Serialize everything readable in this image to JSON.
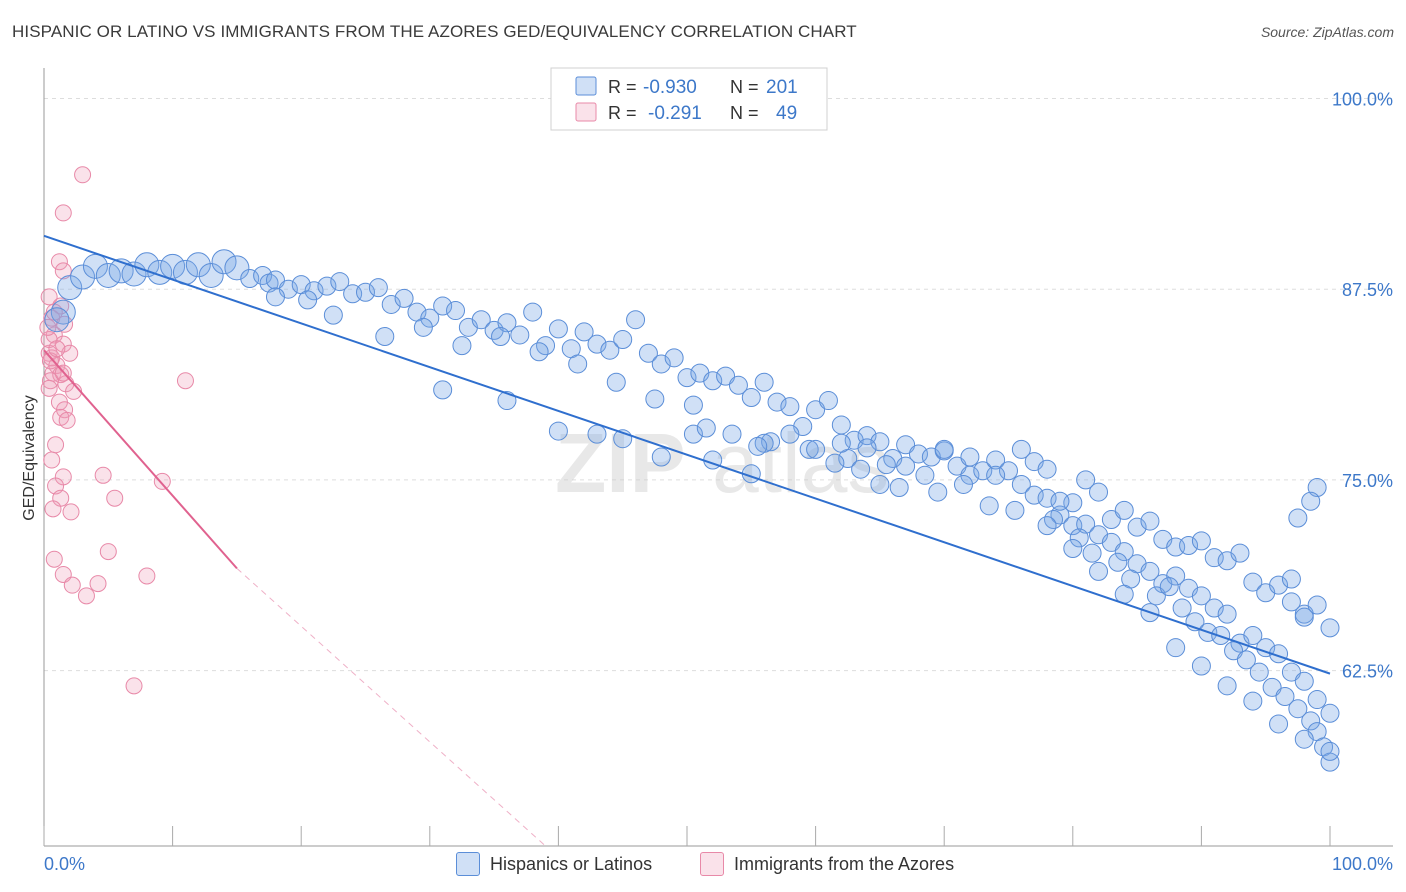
{
  "title": "HISPANIC OR LATINO VS IMMIGRANTS FROM THE AZORES GED/EQUIVALENCY CORRELATION CHART",
  "source": "Source: ZipAtlas.com",
  "watermark": {
    "zip": "ZIP",
    "atlas": "atlas"
  },
  "colors": {
    "blue": "#5b8ed8",
    "blue_fill": "rgba(120,165,230,0.35)",
    "blue_line": "#2f6fce",
    "pink": "#e889a8",
    "pink_fill": "rgba(240,160,185,0.30)",
    "pink_line": "#e0628f",
    "axis_label": "#3d78c9",
    "grid": "#dddddd"
  },
  "legend_top": {
    "rows": [
      {
        "r_label": "R =",
        "r_value": "-0.930",
        "n_label": "N =",
        "n_value": "201"
      },
      {
        "r_label": "R =",
        "r_value": "-0.291",
        "n_label": "N =",
        "n_value": "49"
      }
    ]
  },
  "legend_bottom": {
    "blue": "Hispanics or Latinos",
    "pink": "Immigrants from the Azores"
  },
  "chart_data": {
    "type": "scatter",
    "title": "HISPANIC OR LATINO VS IMMIGRANTS FROM THE AZORES GED/EQUIVALENCY CORRELATION CHART",
    "xlabel": "",
    "ylabel": "GED/Equivalency",
    "xlim": [
      0,
      100
    ],
    "ylim": [
      51.0,
      102.0
    ],
    "x_tick_labels": [
      "0.0%",
      "100.0%"
    ],
    "y_ticks": [
      62.5,
      75.0,
      87.5,
      100.0
    ],
    "y_tick_labels": [
      "62.5%",
      "75.0%",
      "87.5%",
      "100.0%"
    ],
    "grid": true,
    "series": [
      {
        "name": "Hispanics or Latinos",
        "color": "blue",
        "r": -0.93,
        "n": 201,
        "trend": {
          "x": [
            0,
            100
          ],
          "y": [
            91.0,
            62.3
          ]
        },
        "points": [
          [
            2,
            87.6
          ],
          [
            3,
            88.3
          ],
          [
            4,
            89.0
          ],
          [
            5,
            88.4
          ],
          [
            6,
            88.7
          ],
          [
            7,
            88.5
          ],
          [
            8,
            89.1
          ],
          [
            9,
            88.6
          ],
          [
            10,
            89.0
          ],
          [
            11,
            88.6
          ],
          [
            12,
            89.1
          ],
          [
            13,
            88.4
          ],
          [
            14,
            89.3
          ],
          [
            15,
            88.9
          ],
          [
            1.5,
            86.0
          ],
          [
            1,
            85.5
          ],
          [
            16,
            88.2
          ],
          [
            17,
            88.4
          ],
          [
            17.5,
            87.9
          ],
          [
            18,
            88.1
          ],
          [
            19,
            87.5
          ],
          [
            20,
            87.8
          ],
          [
            21,
            87.4
          ],
          [
            22,
            87.7
          ],
          [
            23,
            88.0
          ],
          [
            24,
            87.2
          ],
          [
            25,
            87.3
          ],
          [
            26,
            87.6
          ],
          [
            27,
            86.5
          ],
          [
            28,
            86.9
          ],
          [
            29,
            86.0
          ],
          [
            30,
            85.6
          ],
          [
            31,
            86.4
          ],
          [
            32,
            86.1
          ],
          [
            33,
            85.0
          ],
          [
            34,
            85.5
          ],
          [
            35,
            84.8
          ],
          [
            36,
            85.3
          ],
          [
            37,
            84.5
          ],
          [
            38,
            86.0
          ],
          [
            39,
            83.8
          ],
          [
            40,
            84.9
          ],
          [
            41,
            83.6
          ],
          [
            42,
            84.7
          ],
          [
            43,
            83.9
          ],
          [
            44,
            83.5
          ],
          [
            45,
            84.2
          ],
          [
            46,
            85.5
          ],
          [
            47,
            83.3
          ],
          [
            48,
            82.6
          ],
          [
            49,
            83.0
          ],
          [
            50,
            81.7
          ],
          [
            51,
            82.0
          ],
          [
            52,
            81.5
          ],
          [
            53,
            81.8
          ],
          [
            54,
            81.2
          ],
          [
            55,
            80.4
          ],
          [
            56,
            81.4
          ],
          [
            57,
            80.1
          ],
          [
            58,
            79.8
          ],
          [
            59,
            78.5
          ],
          [
            60,
            79.6
          ],
          [
            61,
            80.2
          ],
          [
            62,
            78.6
          ],
          [
            63,
            77.6
          ],
          [
            64,
            77.9
          ],
          [
            65,
            77.5
          ],
          [
            66,
            76.4
          ],
          [
            67,
            77.3
          ],
          [
            68,
            76.7
          ],
          [
            69,
            76.5
          ],
          [
            70,
            76.9
          ],
          [
            71,
            75.9
          ],
          [
            72,
            75.3
          ],
          [
            73,
            75.6
          ],
          [
            74,
            76.3
          ],
          [
            75,
            75.6
          ],
          [
            76,
            74.7
          ],
          [
            77,
            74.0
          ],
          [
            78,
            73.8
          ],
          [
            79,
            72.7
          ],
          [
            80,
            73.5
          ],
          [
            81,
            75.0
          ],
          [
            82,
            74.2
          ],
          [
            83,
            72.4
          ],
          [
            84,
            73.0
          ],
          [
            85,
            71.9
          ],
          [
            86,
            72.3
          ],
          [
            87,
            71.1
          ],
          [
            88,
            70.6
          ],
          [
            89,
            70.7
          ],
          [
            90,
            71.0
          ],
          [
            91,
            69.9
          ],
          [
            92,
            69.7
          ],
          [
            93,
            70.2
          ],
          [
            94,
            68.3
          ],
          [
            95,
            67.6
          ],
          [
            96,
            68.1
          ],
          [
            97,
            67.0
          ],
          [
            98,
            66.2
          ],
          [
            99,
            66.8
          ],
          [
            100,
            65.3
          ],
          [
            18,
            87.0
          ],
          [
            20.5,
            86.8
          ],
          [
            22.5,
            85.8
          ],
          [
            26.5,
            84.4
          ],
          [
            29.5,
            85.0
          ],
          [
            32.5,
            83.8
          ],
          [
            35.5,
            84.4
          ],
          [
            38.5,
            83.4
          ],
          [
            41.5,
            82.6
          ],
          [
            44.5,
            81.4
          ],
          [
            47.5,
            80.3
          ],
          [
            50.5,
            79.9
          ],
          [
            53.5,
            78.0
          ],
          [
            56.5,
            77.5
          ],
          [
            59.5,
            77.0
          ],
          [
            62.5,
            76.4
          ],
          [
            65.5,
            76.0
          ],
          [
            68.5,
            75.3
          ],
          [
            71.5,
            74.7
          ],
          [
            31,
            80.9
          ],
          [
            36,
            80.2
          ],
          [
            40,
            78.2
          ],
          [
            43,
            78.0
          ],
          [
            45,
            77.7
          ],
          [
            48,
            76.5
          ],
          [
            52,
            76.3
          ],
          [
            55,
            75.4
          ],
          [
            56,
            77.4
          ],
          [
            58,
            78.0
          ],
          [
            60,
            77.0
          ],
          [
            62,
            77.4
          ],
          [
            64,
            77.1
          ],
          [
            65,
            74.7
          ],
          [
            67,
            75.9
          ],
          [
            70,
            77.0
          ],
          [
            72,
            76.5
          ],
          [
            74,
            75.3
          ],
          [
            76,
            77.0
          ],
          [
            77,
            76.2
          ],
          [
            78,
            75.7
          ],
          [
            79,
            73.6
          ],
          [
            80,
            72.0
          ],
          [
            81,
            72.1
          ],
          [
            82,
            71.4
          ],
          [
            83,
            70.9
          ],
          [
            84,
            70.3
          ],
          [
            85,
            69.5
          ],
          [
            86,
            69.0
          ],
          [
            87,
            68.2
          ],
          [
            88,
            68.7
          ],
          [
            89,
            67.9
          ],
          [
            90,
            67.4
          ],
          [
            91,
            66.6
          ],
          [
            92,
            66.2
          ],
          [
            93,
            64.3
          ],
          [
            94,
            64.8
          ],
          [
            95,
            64.0
          ],
          [
            96,
            63.6
          ],
          [
            97,
            62.4
          ],
          [
            98,
            61.8
          ],
          [
            99,
            60.6
          ],
          [
            100,
            59.7
          ],
          [
            50.5,
            78.0
          ],
          [
            51.5,
            78.4
          ],
          [
            55.5,
            77.2
          ],
          [
            61.5,
            76.1
          ],
          [
            63.5,
            75.7
          ],
          [
            66.5,
            74.5
          ],
          [
            69.5,
            74.2
          ],
          [
            73.5,
            73.3
          ],
          [
            75.5,
            73.0
          ],
          [
            78.5,
            72.4
          ],
          [
            80.5,
            71.2
          ],
          [
            81.5,
            70.2
          ],
          [
            83.5,
            69.6
          ],
          [
            84.5,
            68.5
          ],
          [
            86.5,
            67.4
          ],
          [
            87.5,
            68.0
          ],
          [
            88.5,
            66.6
          ],
          [
            89.5,
            65.7
          ],
          [
            90.5,
            65.0
          ],
          [
            91.5,
            64.8
          ],
          [
            92.5,
            63.8
          ],
          [
            93.5,
            63.2
          ],
          [
            94.5,
            62.4
          ],
          [
            95.5,
            61.4
          ],
          [
            96.5,
            60.8
          ],
          [
            97.5,
            60.0
          ],
          [
            98.5,
            59.2
          ],
          [
            99,
            58.5
          ],
          [
            99.5,
            57.5
          ],
          [
            100,
            56.5
          ],
          [
            78,
            72.0
          ],
          [
            80,
            70.5
          ],
          [
            82,
            69.0
          ],
          [
            84,
            67.5
          ],
          [
            86,
            66.3
          ],
          [
            88,
            64.0
          ],
          [
            90,
            62.8
          ],
          [
            92,
            61.5
          ],
          [
            94,
            60.5
          ],
          [
            96,
            59.0
          ],
          [
            98,
            58.0
          ],
          [
            100,
            57.2
          ],
          [
            99,
            74.5
          ],
          [
            97.5,
            72.5
          ],
          [
            98.5,
            73.6
          ],
          [
            97,
            68.5
          ],
          [
            98,
            66.0
          ]
        ]
      },
      {
        "name": "Immigrants from the Azores",
        "color": "pink",
        "r": -0.291,
        "n": 49,
        "trend": {
          "x": [
            0,
            15
          ],
          "y": [
            83.5,
            69.2
          ]
        },
        "trend_extension": {
          "x": [
            15,
            39
          ],
          "y": [
            69.2,
            51.0
          ]
        },
        "points": [
          [
            3,
            95.0
          ],
          [
            1.5,
            92.5
          ],
          [
            1.2,
            89.3
          ],
          [
            1.5,
            88.7
          ],
          [
            0.4,
            87.0
          ],
          [
            1.3,
            86.4
          ],
          [
            0.6,
            85.6
          ],
          [
            1.6,
            85.2
          ],
          [
            0.8,
            84.5
          ],
          [
            1.5,
            83.9
          ],
          [
            0.4,
            83.3
          ],
          [
            2.0,
            83.3
          ],
          [
            0.6,
            83.0
          ],
          [
            1.0,
            82.5
          ],
          [
            0.7,
            82.0
          ],
          [
            1.3,
            81.9
          ],
          [
            0.5,
            81.5
          ],
          [
            1.7,
            81.3
          ],
          [
            2.3,
            80.8
          ],
          [
            1.2,
            80.1
          ],
          [
            1.6,
            79.6
          ],
          [
            1.3,
            79.1
          ],
          [
            1.8,
            78.9
          ],
          [
            0.9,
            77.3
          ],
          [
            0.6,
            76.3
          ],
          [
            1.5,
            75.2
          ],
          [
            0.9,
            74.6
          ],
          [
            1.3,
            73.8
          ],
          [
            0.7,
            73.1
          ],
          [
            2.1,
            72.9
          ],
          [
            4.6,
            75.3
          ],
          [
            5.5,
            73.8
          ],
          [
            5,
            70.3
          ],
          [
            0.8,
            69.8
          ],
          [
            1.5,
            68.8
          ],
          [
            2.2,
            68.1
          ],
          [
            3.3,
            67.4
          ],
          [
            4.2,
            68.2
          ],
          [
            8,
            68.7
          ],
          [
            9.2,
            74.9
          ],
          [
            11,
            81.5
          ],
          [
            7,
            61.5
          ],
          [
            0.4,
            84.2
          ],
          [
            0.5,
            82.8
          ],
          [
            0.4,
            81.0
          ],
          [
            1.0,
            83.6
          ],
          [
            1.5,
            82.0
          ],
          [
            0.8,
            86.0
          ],
          [
            0.3,
            85.0
          ]
        ]
      }
    ]
  }
}
